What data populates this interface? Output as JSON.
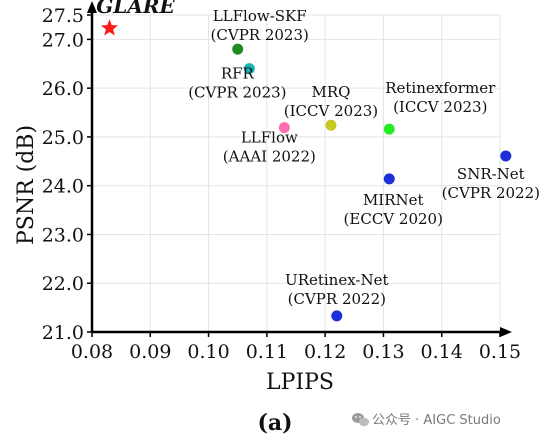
{
  "chart_data": {
    "type": "scatter",
    "xlabel": "LPIPS",
    "ylabel": "PSNR (dB)",
    "xlim": [
      0.08,
      0.15
    ],
    "ylim": [
      21.0,
      27.5
    ],
    "x_ticks": [
      "0.08",
      "0.09",
      "0.10",
      "0.11",
      "0.12",
      "0.13",
      "0.14",
      "0.15"
    ],
    "y_ticks": [
      "21.0",
      "22.0",
      "23.0",
      "24.0",
      "25.0",
      "26.0",
      "27.0",
      "27.5"
    ],
    "grid": true,
    "points": [
      {
        "name": "GLARE",
        "venue": "",
        "x": 0.083,
        "y": 27.23,
        "color": "#ff1a1a",
        "marker": "star"
      },
      {
        "name": "LLFlow-SKF",
        "venue": "(CVPR 2023)",
        "x": 0.105,
        "y": 26.8,
        "color": "#1e8c1e",
        "marker": "circle"
      },
      {
        "name": "RFR",
        "venue": "(CVPR 2023)",
        "x": 0.107,
        "y": 26.4,
        "color": "#17b7b7",
        "marker": "circle"
      },
      {
        "name": "MRQ",
        "venue": "(ICCV 2023)",
        "x": 0.121,
        "y": 25.24,
        "color": "#c8c823",
        "marker": "circle"
      },
      {
        "name": "Retinexformer",
        "venue": "(ICCV 2023)",
        "x": 0.131,
        "y": 25.16,
        "color": "#22ee22",
        "marker": "circle"
      },
      {
        "name": "LLFlow",
        "venue": "(AAAI 2022)",
        "x": 0.113,
        "y": 25.19,
        "color": "#ff6eb0",
        "marker": "circle"
      },
      {
        "name": "MIRNet",
        "venue": "(ECCV 2020)",
        "x": 0.131,
        "y": 24.14,
        "color": "#1d2fd6",
        "marker": "circle"
      },
      {
        "name": "SNR-Net",
        "venue": "(CVPR 2022)",
        "x": 0.151,
        "y": 24.61,
        "color": "#1d2fd6",
        "marker": "circle"
      },
      {
        "name": "URetinex-Net",
        "venue": "(CVPR 2022)",
        "x": 0.122,
        "y": 21.33,
        "color": "#1d2fd6",
        "marker": "circle"
      }
    ]
  },
  "caption": "(a)",
  "watermark": {
    "text": "公众号 · AIGC Studio",
    "icon": "wechat-icon"
  }
}
